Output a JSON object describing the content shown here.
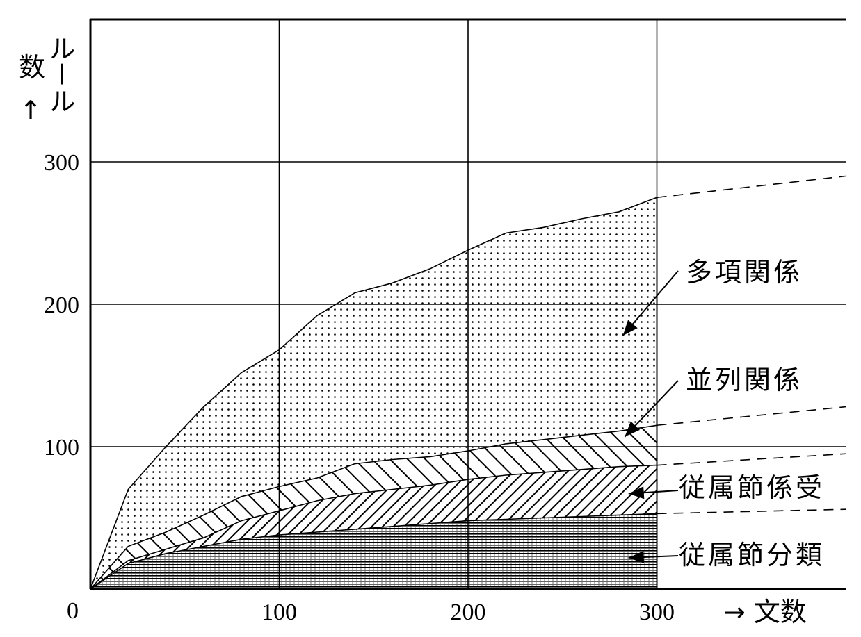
{
  "chart_data": {
    "type": "area",
    "stacked": true,
    "title": "",
    "xlabel": "→ 文数",
    "ylabel_chars": [
      "数",
      "↑"
    ],
    "ylabel_vertical": "ルール",
    "origin_label": "0",
    "xlim": [
      0,
      400
    ],
    "ylim": [
      0,
      400
    ],
    "x_ticks": [
      100,
      200,
      300
    ],
    "x_tick_labels": [
      "100",
      "200",
      "300"
    ],
    "y_ticks": [
      100,
      200,
      300
    ],
    "y_tick_labels": [
      "100",
      "200",
      "300"
    ],
    "grid": true,
    "x": [
      0,
      20,
      40,
      60,
      80,
      100,
      120,
      140,
      160,
      180,
      200,
      220,
      240,
      260,
      280,
      300
    ],
    "series": [
      {
        "name": "従属節分類",
        "pattern": "horizontal-lines",
        "values": [
          0,
          18,
          25,
          30,
          35,
          38,
          40,
          42,
          44,
          46,
          48,
          49,
          50,
          51,
          52,
          53
        ]
      },
      {
        "name": "従属節係受",
        "pattern": "diagonal-hatch",
        "values": [
          0,
          20,
          28,
          36,
          48,
          55,
          62,
          67,
          70,
          73,
          77,
          80,
          82,
          84,
          86,
          87
        ]
      },
      {
        "name": "並列関係",
        "pattern": "reverse-diagonal-hatch",
        "values": [
          0,
          30,
          40,
          52,
          65,
          72,
          78,
          88,
          91,
          93,
          97,
          102,
          105,
          108,
          111,
          115
        ]
      },
      {
        "name": "多項関係",
        "pattern": "dots",
        "values": [
          0,
          70,
          100,
          128,
          152,
          168,
          192,
          208,
          215,
          225,
          238,
          250,
          254,
          260,
          265,
          275
        ]
      }
    ],
    "extrapolation": {
      "style": "dashed",
      "x": [
        300,
        400
      ],
      "series_end_values": [
        [
          53,
          56
        ],
        [
          87,
          95
        ],
        [
          115,
          128
        ],
        [
          275,
          290
        ]
      ]
    },
    "annotations": [
      {
        "text": "多項関係",
        "arrow_to": [
          282,
          178
        ]
      },
      {
        "text": "並列関係",
        "arrow_to": [
          283,
          107
        ]
      },
      {
        "text": "従属節係受",
        "arrow_to": [
          285,
          67
        ]
      },
      {
        "text": "従属節分類",
        "arrow_to": [
          285,
          22
        ]
      }
    ]
  }
}
